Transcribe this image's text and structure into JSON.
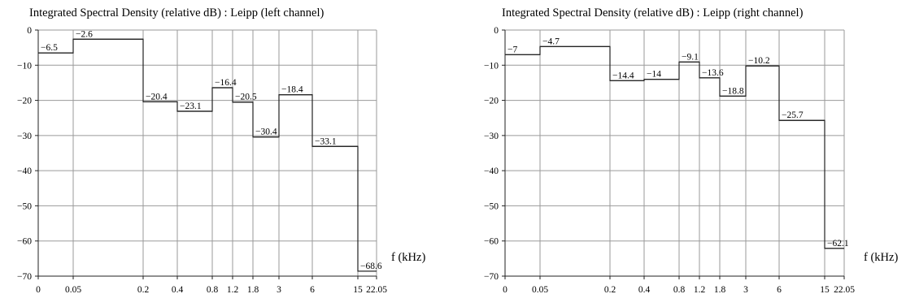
{
  "chart_data": [
    {
      "type": "step",
      "title": "Integrated Spectral Density (relative dB) : Leipp (left channel)",
      "xlabel": "f (kHz)",
      "ylabel": "",
      "ylim": [
        -70,
        0
      ],
      "y_ticks": [
        "0",
        "-10",
        "-20",
        "-30",
        "-40",
        "-50",
        "-60",
        "-70"
      ],
      "x_ticks": [
        "0",
        "0.05",
        "0.2",
        "0.4",
        "0.8",
        "1.2",
        "1.8",
        "3",
        "6",
        "15",
        "22.05"
      ],
      "x_scale": "ordinal band edges",
      "grid": true,
      "bands": [
        {
          "from": "0",
          "to": "0.05",
          "value": -6.5,
          "label": "−6.5"
        },
        {
          "from": "0.05",
          "to": "0.2",
          "value": -2.6,
          "label": "−2.6"
        },
        {
          "from": "0.2",
          "to": "0.4",
          "value": -20.4,
          "label": "−20.4"
        },
        {
          "from": "0.4",
          "to": "0.8",
          "value": -23.1,
          "label": "−23.1"
        },
        {
          "from": "0.8",
          "to": "1.2",
          "value": -16.4,
          "label": "−16.4"
        },
        {
          "from": "1.2",
          "to": "1.8",
          "value": -20.5,
          "label": "−20.5"
        },
        {
          "from": "1.8",
          "to": "3",
          "value": -30.4,
          "label": "−30.4"
        },
        {
          "from": "3",
          "to": "6",
          "value": -18.4,
          "label": "−18.4"
        },
        {
          "from": "6",
          "to": "15",
          "value": -33.1,
          "label": "−33.1"
        },
        {
          "from": "15",
          "to": "22.05",
          "value": -68.6,
          "label": "−68.6"
        }
      ]
    },
    {
      "type": "step",
      "title": "Integrated Spectral Density (relative dB) : Leipp (right channel)",
      "xlabel": "f (kHz)",
      "ylabel": "",
      "ylim": [
        -70,
        0
      ],
      "y_ticks": [
        "0",
        "-10",
        "-20",
        "-30",
        "-40",
        "-50",
        "-60",
        "-70"
      ],
      "x_ticks": [
        "0",
        "0.05",
        "0.2",
        "0.4",
        "0.8",
        "1.2",
        "1.8",
        "3",
        "6",
        "15",
        "22.05"
      ],
      "x_scale": "ordinal band edges",
      "grid": true,
      "bands": [
        {
          "from": "0",
          "to": "0.05",
          "value": -7,
          "label": "−7"
        },
        {
          "from": "0.05",
          "to": "0.2",
          "value": -4.7,
          "label": "−4.7"
        },
        {
          "from": "0.2",
          "to": "0.4",
          "value": -14.4,
          "label": "−14.4"
        },
        {
          "from": "0.4",
          "to": "0.8",
          "value": -14,
          "label": "−14"
        },
        {
          "from": "0.8",
          "to": "1.2",
          "value": -9.1,
          "label": "−9.1"
        },
        {
          "from": "1.2",
          "to": "1.8",
          "value": -13.6,
          "label": "−13.6"
        },
        {
          "from": "1.8",
          "to": "3",
          "value": -18.8,
          "label": "−18.8"
        },
        {
          "from": "3",
          "to": "6",
          "value": -10.2,
          "label": "−10.2"
        },
        {
          "from": "6",
          "to": "15",
          "value": -25.7,
          "label": "−25.7"
        },
        {
          "from": "15",
          "to": "22.05",
          "value": -62.1,
          "label": "−62.1"
        }
      ]
    }
  ]
}
